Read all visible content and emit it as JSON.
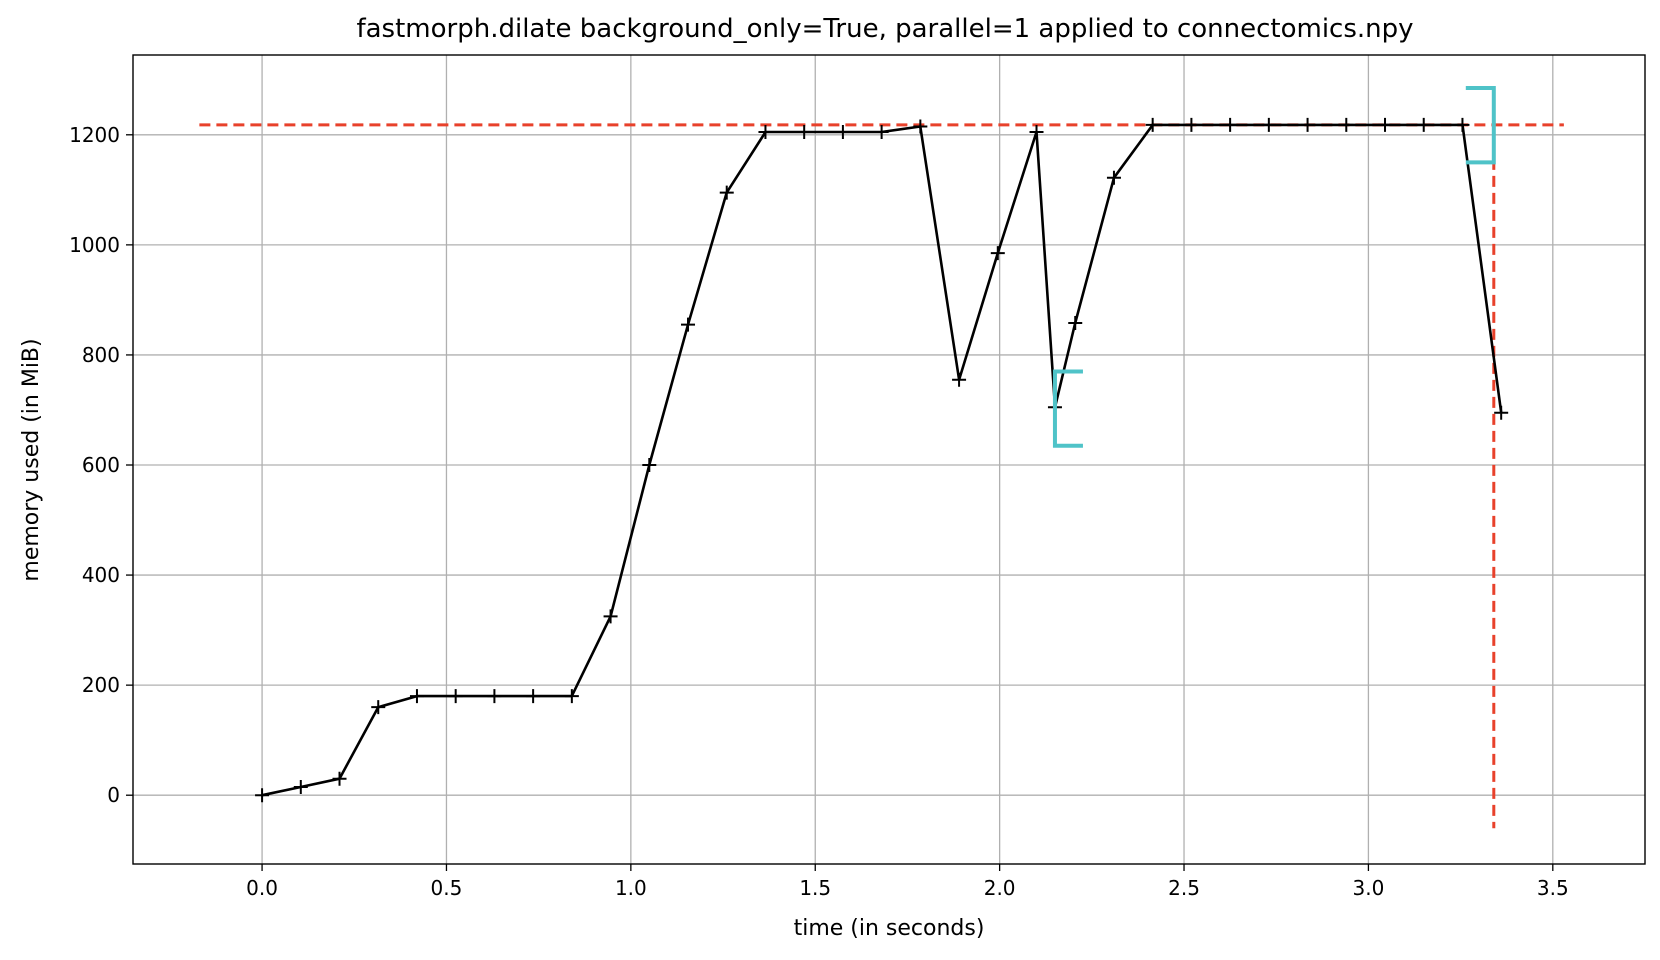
{
  "chart_data": {
    "type": "line",
    "title": "fastmorph.dilate background_only=True, parallel=1 applied to connectomics.npy",
    "xlabel": "time (in seconds)",
    "ylabel": "memory used (in MiB)",
    "xlim": [
      -0.35,
      3.75
    ],
    "ylim": [
      -125,
      1345
    ],
    "xticks": [
      0.0,
      0.5,
      1.0,
      1.5,
      2.0,
      2.5,
      3.0,
      3.5
    ],
    "xtick_labels": [
      "0.0",
      "0.5",
      "1.0",
      "1.5",
      "2.0",
      "2.5",
      "3.0",
      "3.5"
    ],
    "yticks": [
      0,
      200,
      400,
      600,
      800,
      1000,
      1200
    ],
    "ytick_labels": [
      "0",
      "200",
      "400",
      "600",
      "800",
      "1000",
      "1200"
    ],
    "grid": true,
    "series": [
      {
        "color": "#000000",
        "marker": "+",
        "x": [
          0.0,
          0.105,
          0.21,
          0.315,
          0.42,
          0.525,
          0.63,
          0.735,
          0.84,
          0.945,
          1.05,
          1.155,
          1.26,
          1.365,
          1.47,
          1.575,
          1.68,
          1.785,
          1.89,
          1.995,
          2.1,
          2.15,
          2.205,
          2.31,
          2.415,
          2.52,
          2.625,
          2.73,
          2.835,
          2.94,
          3.045,
          3.15,
          3.255,
          3.36
        ],
        "y": [
          0,
          15,
          30,
          160,
          180,
          180,
          180,
          180,
          180,
          325,
          600,
          855,
          1095,
          1205,
          1205,
          1205,
          1205,
          1215,
          755,
          985,
          1205,
          705,
          858,
          1122,
          1218,
          1218,
          1218,
          1218,
          1218,
          1218,
          1218,
          1218,
          1218,
          695
        ]
      }
    ],
    "reference_lines": {
      "color": "#e8412b",
      "horizontal": {
        "y": 1218,
        "x_from": -0.17,
        "x_to": 3.53
      },
      "vertical": {
        "x": 3.34,
        "y_from": -60,
        "y_to": 1218
      }
    },
    "brackets": {
      "color": "#4fc3c8",
      "items": [
        {
          "x": 2.15,
          "y_low": 635,
          "y_high": 770,
          "opens": "right"
        },
        {
          "x": 3.34,
          "y_low": 1150,
          "y_high": 1285,
          "opens": "left"
        }
      ]
    }
  }
}
